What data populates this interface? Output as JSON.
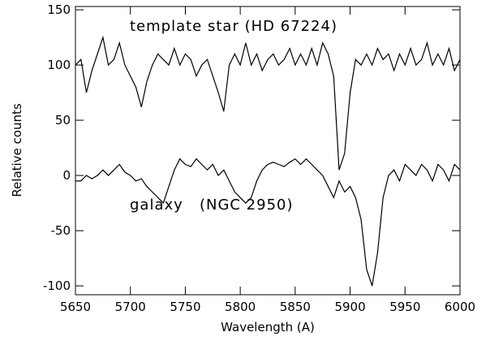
{
  "chart_data": {
    "type": "line",
    "x_label": "Wavelength (A)",
    "y_label": "Relative counts",
    "xlim": [
      5650,
      6000
    ],
    "ylim": [
      -108,
      153
    ],
    "xticks": [
      5650,
      5700,
      5750,
      5800,
      5850,
      5900,
      5950,
      6000
    ],
    "yticks": [
      -100,
      -50,
      0,
      50,
      100,
      150
    ],
    "x": [
      5650,
      5655,
      5660,
      5665,
      5670,
      5675,
      5680,
      5685,
      5690,
      5695,
      5700,
      5705,
      5710,
      5715,
      5720,
      5725,
      5730,
      5735,
      5740,
      5745,
      5750,
      5755,
      5760,
      5765,
      5770,
      5775,
      5780,
      5785,
      5790,
      5795,
      5800,
      5805,
      5810,
      5815,
      5820,
      5825,
      5830,
      5835,
      5840,
      5845,
      5850,
      5855,
      5860,
      5865,
      5870,
      5875,
      5880,
      5885,
      5890,
      5895,
      5900,
      5905,
      5910,
      5915,
      5920,
      5925,
      5930,
      5935,
      5940,
      5945,
      5950,
      5955,
      5960,
      5965,
      5970,
      5975,
      5980,
      5985,
      5990,
      5995,
      6000
    ],
    "series": [
      {
        "name": "template star (HD 67224)",
        "color": "#000000",
        "values": [
          100,
          105,
          75,
          95,
          110,
          125,
          100,
          105,
          120,
          100,
          90,
          80,
          62,
          85,
          100,
          110,
          105,
          100,
          115,
          100,
          110,
          105,
          90,
          100,
          105,
          90,
          75,
          58,
          100,
          110,
          100,
          120,
          100,
          110,
          95,
          105,
          110,
          100,
          105,
          115,
          100,
          110,
          100,
          115,
          100,
          120,
          110,
          90,
          5,
          20,
          75,
          105,
          100,
          110,
          100,
          115,
          105,
          110,
          95,
          110,
          100,
          115,
          100,
          105,
          120,
          100,
          110,
          100,
          115,
          95,
          105
        ]
      },
      {
        "name": "galaxy   (NGC 2950)",
        "color": "#000000",
        "values": [
          -5,
          -5,
          0,
          -3,
          0,
          5,
          0,
          5,
          10,
          3,
          0,
          -5,
          -3,
          -10,
          -15,
          -20,
          -25,
          -10,
          5,
          15,
          10,
          8,
          15,
          10,
          5,
          10,
          0,
          5,
          -5,
          -15,
          -20,
          -25,
          -20,
          -5,
          5,
          10,
          12,
          10,
          8,
          12,
          15,
          10,
          15,
          10,
          5,
          0,
          -10,
          -20,
          -5,
          -15,
          -10,
          -20,
          -40,
          -85,
          -100,
          -70,
          -20,
          0,
          5,
          -5,
          10,
          5,
          0,
          10,
          5,
          -5,
          10,
          5,
          -5,
          10,
          5
        ]
      }
    ]
  }
}
